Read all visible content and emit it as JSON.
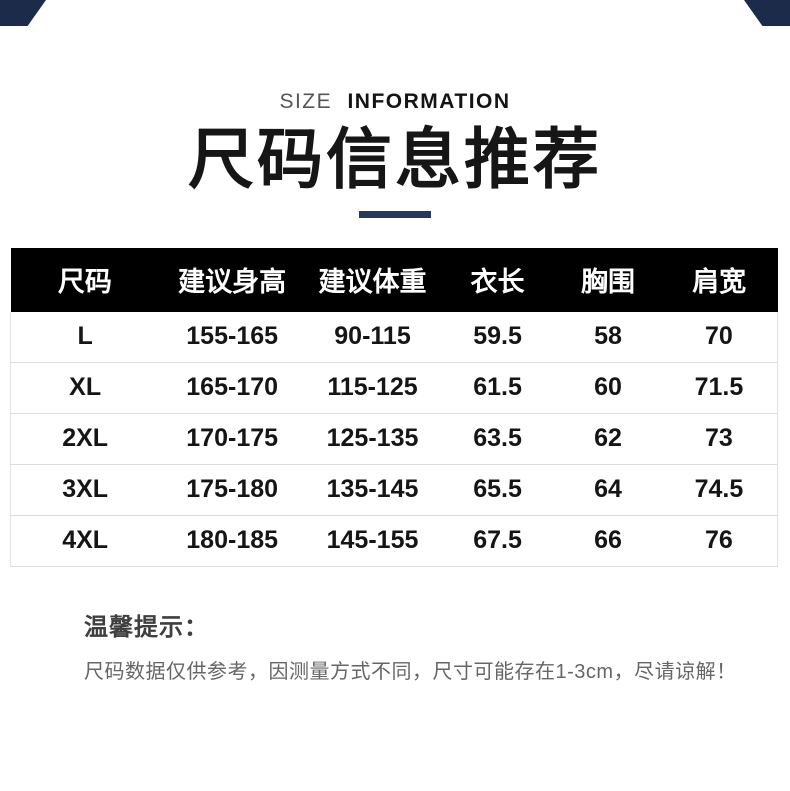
{
  "eyebrow": {
    "light": "SIZE",
    "bold": "INFORMATION"
  },
  "title": "尺码信息推荐",
  "colors": {
    "accent_navy": "#26395a",
    "corner_navy": "#1c2b49",
    "header_bg": "#000000",
    "header_text": "#ffffff",
    "divider": "#dcdcdc",
    "note_text": "#666666"
  },
  "table": {
    "headers": [
      "尺码",
      "建议身高",
      "建议体重",
      "衣长",
      "胸围",
      "肩宽"
    ],
    "rows": [
      [
        "L",
        "155-165",
        "90-115",
        "59.5",
        "58",
        "70"
      ],
      [
        "XL",
        "165-170",
        "115-125",
        "61.5",
        "60",
        "71.5"
      ],
      [
        "2XL",
        "170-175",
        "125-135",
        "63.5",
        "62",
        "73"
      ],
      [
        "3XL",
        "175-180",
        "135-145",
        "65.5",
        "64",
        "74.5"
      ],
      [
        "4XL",
        "180-185",
        "145-155",
        "67.5",
        "66",
        "76"
      ]
    ]
  },
  "note": {
    "title": "温馨提示：",
    "body": "尺码数据仅供参考，因测量方式不同，尺寸可能存在1-3cm，尽请谅解！"
  }
}
